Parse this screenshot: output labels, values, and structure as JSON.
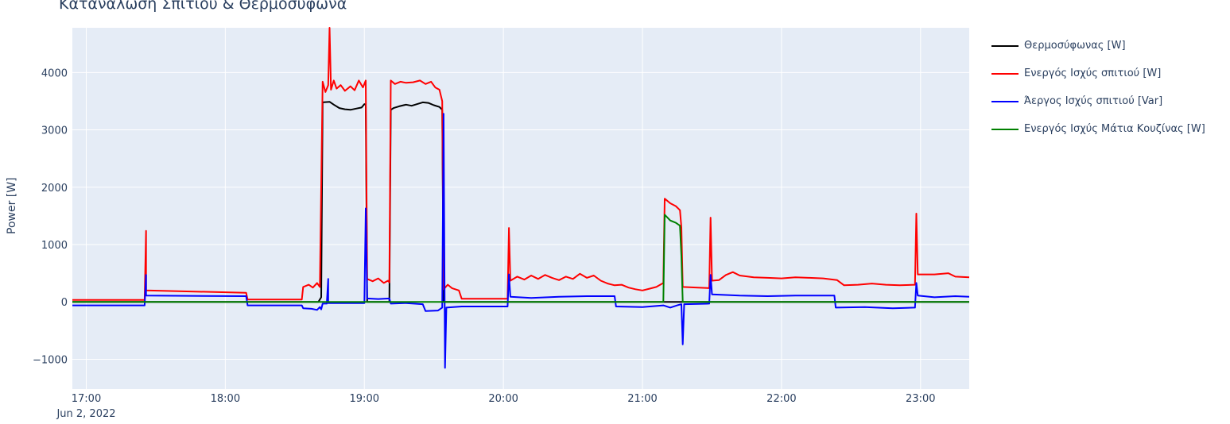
{
  "chart_data": {
    "type": "line",
    "title": "Κατανάλωση Σπιτιού & Θερμοσύφωνα",
    "xlabel": "",
    "ylabel": "Power [W]",
    "x_domain_hours": [
      16.9,
      23.35
    ],
    "ylim": [
      -1520,
      4780
    ],
    "grid": true,
    "legend_position": "right",
    "x_ticks": [
      {
        "h": 17,
        "label": "17:00",
        "sub": "Jun 2, 2022"
      },
      {
        "h": 18,
        "label": "18:00",
        "sub": ""
      },
      {
        "h": 19,
        "label": "19:00",
        "sub": ""
      },
      {
        "h": 20,
        "label": "20:00",
        "sub": ""
      },
      {
        "h": 21,
        "label": "21:00",
        "sub": ""
      },
      {
        "h": 22,
        "label": "22:00",
        "sub": ""
      },
      {
        "h": 23,
        "label": "23:00",
        "sub": ""
      }
    ],
    "y_ticks": [
      {
        "v": -1000,
        "label": "−1000"
      },
      {
        "v": 0,
        "label": "0"
      },
      {
        "v": 1000,
        "label": "1000"
      },
      {
        "v": 2000,
        "label": "2000"
      },
      {
        "v": 3000,
        "label": "3000"
      },
      {
        "v": 4000,
        "label": "4000"
      }
    ],
    "series": [
      {
        "name": "Θερμοσύφωνας [W]",
        "color": "#000000",
        "points": [
          [
            16.9,
            0
          ],
          [
            18.67,
            0
          ],
          [
            18.69,
            80
          ],
          [
            18.7,
            3480
          ],
          [
            18.75,
            3490
          ],
          [
            18.78,
            3440
          ],
          [
            18.82,
            3380
          ],
          [
            18.86,
            3360
          ],
          [
            18.9,
            3350
          ],
          [
            18.94,
            3370
          ],
          [
            18.98,
            3390
          ],
          [
            19.0,
            3450
          ],
          [
            19.01,
            3440
          ],
          [
            19.02,
            0
          ],
          [
            19.18,
            0
          ],
          [
            19.19,
            3350
          ],
          [
            19.21,
            3380
          ],
          [
            19.25,
            3410
          ],
          [
            19.3,
            3440
          ],
          [
            19.34,
            3420
          ],
          [
            19.38,
            3450
          ],
          [
            19.42,
            3480
          ],
          [
            19.46,
            3470
          ],
          [
            19.5,
            3430
          ],
          [
            19.54,
            3400
          ],
          [
            19.56,
            3350
          ],
          [
            19.57,
            0
          ],
          [
            23.35,
            0
          ]
        ]
      },
      {
        "name": "Ενεργός Ισχύς σπιτιού [W]",
        "color": "#ff0000",
        "points": [
          [
            16.9,
            35
          ],
          [
            17.42,
            35
          ],
          [
            17.43,
            1240
          ],
          [
            17.43,
            200
          ],
          [
            18.15,
            160
          ],
          [
            18.16,
            40
          ],
          [
            18.55,
            40
          ],
          [
            18.56,
            260
          ],
          [
            18.6,
            300
          ],
          [
            18.63,
            250
          ],
          [
            18.66,
            330
          ],
          [
            18.68,
            260
          ],
          [
            18.7,
            3840
          ],
          [
            18.72,
            3660
          ],
          [
            18.74,
            3780
          ],
          [
            18.75,
            4780
          ],
          [
            18.76,
            3700
          ],
          [
            18.78,
            3860
          ],
          [
            18.8,
            3720
          ],
          [
            18.83,
            3780
          ],
          [
            18.86,
            3680
          ],
          [
            18.9,
            3760
          ],
          [
            18.93,
            3690
          ],
          [
            18.96,
            3860
          ],
          [
            18.99,
            3740
          ],
          [
            19.01,
            3860
          ],
          [
            19.02,
            400
          ],
          [
            19.06,
            360
          ],
          [
            19.1,
            410
          ],
          [
            19.14,
            330
          ],
          [
            19.17,
            370
          ],
          [
            19.18,
            340
          ],
          [
            19.19,
            3860
          ],
          [
            19.22,
            3800
          ],
          [
            19.26,
            3840
          ],
          [
            19.3,
            3820
          ],
          [
            19.35,
            3830
          ],
          [
            19.4,
            3860
          ],
          [
            19.44,
            3800
          ],
          [
            19.48,
            3840
          ],
          [
            19.51,
            3740
          ],
          [
            19.54,
            3700
          ],
          [
            19.56,
            3500
          ],
          [
            19.57,
            220
          ],
          [
            19.6,
            300
          ],
          [
            19.63,
            240
          ],
          [
            19.68,
            200
          ],
          [
            19.7,
            55
          ],
          [
            20.03,
            55
          ],
          [
            20.04,
            1290
          ],
          [
            20.05,
            370
          ],
          [
            20.1,
            440
          ],
          [
            20.15,
            390
          ],
          [
            20.2,
            460
          ],
          [
            20.25,
            400
          ],
          [
            20.3,
            470
          ],
          [
            20.35,
            420
          ],
          [
            20.4,
            380
          ],
          [
            20.45,
            440
          ],
          [
            20.5,
            400
          ],
          [
            20.55,
            490
          ],
          [
            20.6,
            420
          ],
          [
            20.65,
            460
          ],
          [
            20.7,
            370
          ],
          [
            20.75,
            320
          ],
          [
            20.8,
            290
          ],
          [
            20.85,
            300
          ],
          [
            20.9,
            250
          ],
          [
            20.95,
            220
          ],
          [
            21.0,
            200
          ],
          [
            21.05,
            230
          ],
          [
            21.1,
            260
          ],
          [
            21.15,
            330
          ],
          [
            21.16,
            1800
          ],
          [
            21.2,
            1720
          ],
          [
            21.24,
            1670
          ],
          [
            21.27,
            1600
          ],
          [
            21.28,
            1300
          ],
          [
            21.29,
            260
          ],
          [
            21.4,
            250
          ],
          [
            21.48,
            240
          ],
          [
            21.49,
            1470
          ],
          [
            21.5,
            370
          ],
          [
            21.55,
            380
          ],
          [
            21.6,
            470
          ],
          [
            21.65,
            520
          ],
          [
            21.7,
            460
          ],
          [
            21.8,
            430
          ],
          [
            21.9,
            420
          ],
          [
            22.0,
            410
          ],
          [
            22.1,
            430
          ],
          [
            22.2,
            420
          ],
          [
            22.3,
            410
          ],
          [
            22.4,
            380
          ],
          [
            22.45,
            290
          ],
          [
            22.55,
            300
          ],
          [
            22.65,
            320
          ],
          [
            22.75,
            300
          ],
          [
            22.85,
            290
          ],
          [
            22.96,
            300
          ],
          [
            22.97,
            1540
          ],
          [
            22.98,
            480
          ],
          [
            23.1,
            480
          ],
          [
            23.2,
            500
          ],
          [
            23.25,
            440
          ],
          [
            23.35,
            430
          ]
        ]
      },
      {
        "name": "Άεργος Ισχύς σπιτιού [Var]",
        "color": "#0000ff",
        "points": [
          [
            16.9,
            -60
          ],
          [
            17.42,
            -60
          ],
          [
            17.43,
            470
          ],
          [
            17.43,
            110
          ],
          [
            18.15,
            100
          ],
          [
            18.16,
            -60
          ],
          [
            18.55,
            -60
          ],
          [
            18.56,
            -110
          ],
          [
            18.62,
            -120
          ],
          [
            18.66,
            -140
          ],
          [
            18.68,
            -90
          ],
          [
            18.69,
            -130
          ],
          [
            18.7,
            -30
          ],
          [
            18.73,
            -30
          ],
          [
            18.74,
            400
          ],
          [
            18.74,
            -20
          ],
          [
            19.0,
            -20
          ],
          [
            19.01,
            1630
          ],
          [
            19.02,
            60
          ],
          [
            19.1,
            50
          ],
          [
            19.18,
            60
          ],
          [
            19.19,
            -30
          ],
          [
            19.3,
            -20
          ],
          [
            19.42,
            -40
          ],
          [
            19.44,
            -160
          ],
          [
            19.53,
            -150
          ],
          [
            19.56,
            -100
          ],
          [
            19.57,
            3280
          ],
          [
            19.58,
            -1150
          ],
          [
            19.59,
            -100
          ],
          [
            19.7,
            -80
          ],
          [
            20.03,
            -80
          ],
          [
            20.04,
            480
          ],
          [
            20.05,
            90
          ],
          [
            20.2,
            70
          ],
          [
            20.4,
            90
          ],
          [
            20.6,
            100
          ],
          [
            20.8,
            100
          ],
          [
            20.81,
            -80
          ],
          [
            21.0,
            -90
          ],
          [
            21.15,
            -60
          ],
          [
            21.2,
            -100
          ],
          [
            21.25,
            -60
          ],
          [
            21.28,
            -40
          ],
          [
            21.29,
            -740
          ],
          [
            21.3,
            -40
          ],
          [
            21.48,
            -30
          ],
          [
            21.49,
            470
          ],
          [
            21.5,
            130
          ],
          [
            21.7,
            110
          ],
          [
            21.9,
            100
          ],
          [
            22.1,
            110
          ],
          [
            22.38,
            110
          ],
          [
            22.39,
            -100
          ],
          [
            22.6,
            -90
          ],
          [
            22.8,
            -110
          ],
          [
            22.96,
            -100
          ],
          [
            22.97,
            330
          ],
          [
            22.98,
            110
          ],
          [
            23.1,
            80
          ],
          [
            23.25,
            100
          ],
          [
            23.35,
            90
          ]
        ]
      },
      {
        "name": "Ενεργός Ισχύς Μάτια Κουζίνας [W]",
        "color": "#008000",
        "points": [
          [
            16.9,
            0
          ],
          [
            21.15,
            0
          ],
          [
            21.16,
            1520
          ],
          [
            21.2,
            1420
          ],
          [
            21.24,
            1380
          ],
          [
            21.27,
            1330
          ],
          [
            21.28,
            800
          ],
          [
            21.29,
            0
          ],
          [
            23.35,
            0
          ]
        ]
      }
    ]
  }
}
